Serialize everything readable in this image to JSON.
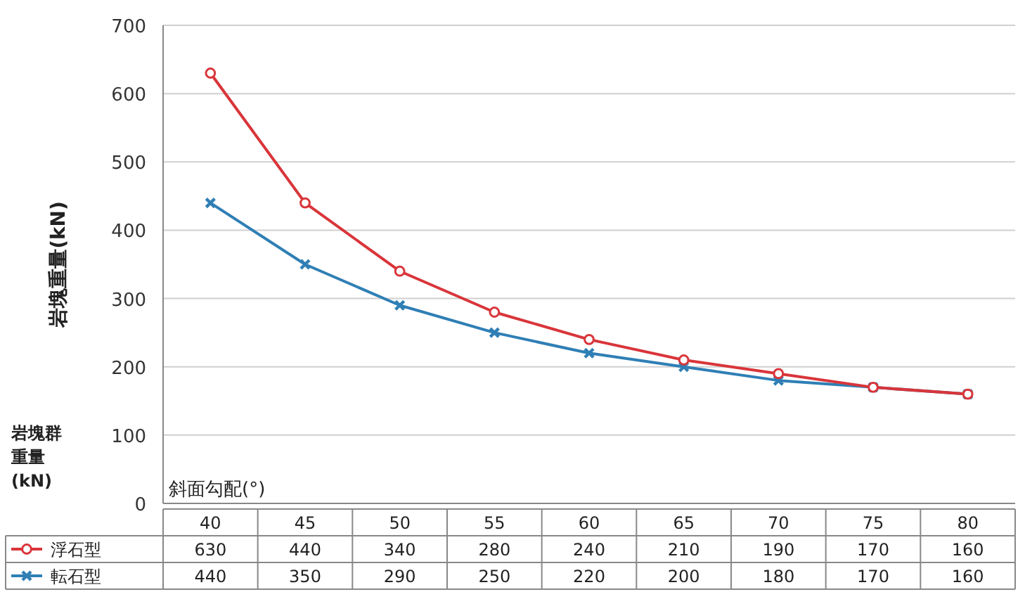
{
  "chart_data": {
    "type": "line",
    "ylabel": "岩塊重量(kN)",
    "xlabel": "斜面勾配(°)",
    "annotations": [
      "岩塊群重量(kN)"
    ],
    "categories": [
      "40",
      "45",
      "50",
      "55",
      "60",
      "65",
      "70",
      "75",
      "80"
    ],
    "series": [
      {
        "name": "浮石型",
        "color": "#d9353a",
        "marker": "circle",
        "values": [
          630,
          440,
          340,
          280,
          240,
          210,
          190,
          170,
          160
        ]
      },
      {
        "name": "転石型",
        "color": "#2f7fb5",
        "marker": "cross",
        "values": [
          440,
          350,
          290,
          250,
          220,
          200,
          180,
          170,
          160
        ]
      }
    ],
    "ylim": [
      0,
      700
    ],
    "yticks": [
      0,
      100,
      200,
      300,
      400,
      500,
      600,
      700
    ],
    "grid": "y",
    "legend": "bottom",
    "data_labels": true,
    "line_style": "solid"
  }
}
